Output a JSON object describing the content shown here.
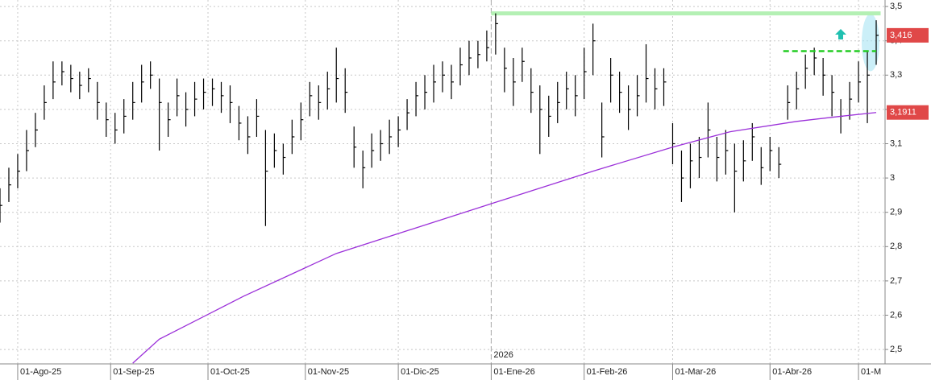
{
  "chart_data": {
    "type": "ohlc",
    "xlim": [
      0,
      200
    ],
    "ylim": [
      2.458,
      3.519
    ],
    "grid": true,
    "xticks": [
      {
        "value": 4,
        "label": "01-Ago-25"
      },
      {
        "value": 25,
        "label": "01-Sep-25"
      },
      {
        "value": 47,
        "label": "01-Oct-25"
      },
      {
        "value": 69,
        "label": "01-Nov-25"
      },
      {
        "value": 90,
        "label": "01-Dic-25"
      },
      {
        "value": 111,
        "label": "01-Ene-26"
      },
      {
        "value": 132,
        "label": "01-Feb-26"
      },
      {
        "value": 152,
        "label": "01-Mar-26"
      },
      {
        "value": 174,
        "label": "01-Abr-26"
      },
      {
        "value": 194,
        "label": "01-M"
      }
    ],
    "yticks": [
      {
        "value": 2.5,
        "label": "2,5"
      },
      {
        "value": 2.6,
        "label": "2,6"
      },
      {
        "value": 2.7,
        "label": "2,7"
      },
      {
        "value": 2.8,
        "label": "2,8"
      },
      {
        "value": 2.9,
        "label": "2,9"
      },
      {
        "value": 3,
        "label": "3"
      },
      {
        "value": 3.1,
        "label": "3,1"
      },
      {
        "value": 3.2,
        "label": "3,2"
      },
      {
        "value": 3.3,
        "label": "3,3"
      },
      {
        "value": 3.4,
        "label": "3,4"
      },
      {
        "value": 3.5,
        "label": "3,5"
      }
    ],
    "year_marker": {
      "value": 111,
      "label": "2026"
    },
    "color": "#000000",
    "x": [
      0,
      2,
      4,
      6,
      8,
      10,
      12,
      14,
      16,
      18,
      20,
      22,
      24,
      26,
      28,
      30,
      32,
      34,
      36,
      38,
      40,
      42,
      44,
      46,
      48,
      50,
      52,
      54,
      56,
      58,
      60,
      62,
      64,
      66,
      68,
      70,
      72,
      74,
      76,
      78,
      80,
      82,
      84,
      86,
      88,
      90,
      92,
      94,
      96,
      98,
      100,
      102,
      104,
      106,
      108,
      110,
      112,
      114,
      116,
      118,
      120,
      122,
      124,
      126,
      128,
      130,
      132,
      134,
      136,
      138,
      140,
      142,
      144,
      146,
      148,
      150,
      152,
      154,
      156,
      158,
      160,
      162,
      164,
      166,
      168,
      170,
      172,
      174,
      176,
      178,
      180,
      182,
      184,
      186,
      188,
      190,
      192,
      194,
      196,
      198
    ],
    "high": [
      2.97,
      3.03,
      3.07,
      3.14,
      3.19,
      3.27,
      3.34,
      3.34,
      3.33,
      3.31,
      3.32,
      3.28,
      3.22,
      3.19,
      3.23,
      3.28,
      3.33,
      3.34,
      3.29,
      3.22,
      3.29,
      3.25,
      3.28,
      3.29,
      3.29,
      3.28,
      3.27,
      3.21,
      3.18,
      3.23,
      3.14,
      3.13,
      3.1,
      3.17,
      3.22,
      3.28,
      3.27,
      3.31,
      3.38,
      3.32,
      3.15,
      3.08,
      3.13,
      3.14,
      3.17,
      3.18,
      3.23,
      3.28,
      3.3,
      3.33,
      3.34,
      3.33,
      3.38,
      3.4,
      3.4,
      3.43,
      3.48,
      3.38,
      3.35,
      3.38,
      3.32,
      3.27,
      3.24,
      3.28,
      3.31,
      3.3,
      3.38,
      3.45,
      3.22,
      3.35,
      3.31,
      3.27,
      3.3,
      3.39,
      3.32,
      3.32,
      3.16,
      3.08,
      3.1,
      3.12,
      3.22,
      3.12,
      3.14,
      3.1,
      3.11,
      3.16,
      3.09,
      3.12,
      3.09,
      3.27,
      3.31,
      3.36,
      3.38,
      3.35,
      3.3,
      3.23,
      3.28,
      3.34,
      3.37,
      3.46
    ],
    "low": [
      2.87,
      2.93,
      2.97,
      3.02,
      3.09,
      3.17,
      3.23,
      3.27,
      3.25,
      3.23,
      3.25,
      3.17,
      3.12,
      3.1,
      3.13,
      3.17,
      3.22,
      3.26,
      3.08,
      3.12,
      3.18,
      3.15,
      3.18,
      3.2,
      3.21,
      3.19,
      3.16,
      3.11,
      3.07,
      3.12,
      2.86,
      3.03,
      3.01,
      3.07,
      3.11,
      3.18,
      3.17,
      3.2,
      3.22,
      3.19,
      3.03,
      2.97,
      3.03,
      3.05,
      3.07,
      3.09,
      3.14,
      3.18,
      3.2,
      3.22,
      3.25,
      3.23,
      3.27,
      3.3,
      3.32,
      3.34,
      3.36,
      3.25,
      3.21,
      3.28,
      3.19,
      3.07,
      3.12,
      3.16,
      3.2,
      3.18,
      3.23,
      3.3,
      3.06,
      3.22,
      3.19,
      3.14,
      3.18,
      3.22,
      3.2,
      3.21,
      3.04,
      2.93,
      2.97,
      3.0,
      3.06,
      2.99,
      3.01,
      2.9,
      2.99,
      3.05,
      2.98,
      3.02,
      3.0,
      3.17,
      3.2,
      3.26,
      3.3,
      3.24,
      3.18,
      3.13,
      3.17,
      3.22,
      3.16,
      3.33
    ],
    "close": [
      2.92,
      2.98,
      3.02,
      3.08,
      3.14,
      3.22,
      3.28,
      3.31,
      3.29,
      3.27,
      3.29,
      3.22,
      3.17,
      3.14,
      3.18,
      3.22,
      3.28,
      3.3,
      3.22,
      3.17,
      3.24,
      3.2,
      3.23,
      3.25,
      3.26,
      3.24,
      3.22,
      3.16,
      3.12,
      3.18,
      3.02,
      3.08,
      3.06,
      3.12,
      3.17,
      3.24,
      3.22,
      3.26,
      3.29,
      3.25,
      3.09,
      3.03,
      3.08,
      3.1,
      3.12,
      3.14,
      3.19,
      3.24,
      3.25,
      3.28,
      3.3,
      3.28,
      3.33,
      3.35,
      3.36,
      3.38,
      3.45,
      3.32,
      3.28,
      3.34,
      3.25,
      3.2,
      3.18,
      3.22,
      3.26,
      3.24,
      3.31,
      3.4,
      3.12,
      3.3,
      3.25,
      3.2,
      3.24,
      3.29,
      3.26,
      3.28,
      3.1,
      3.0,
      3.05,
      3.06,
      3.14,
      3.06,
      3.08,
      3.02,
      3.05,
      3.12,
      3.03,
      3.08,
      3.04,
      3.22,
      3.26,
      3.32,
      3.35,
      3.3,
      3.25,
      3.18,
      3.23,
      3.28,
      3.3,
      3.416
    ],
    "moving_average": {
      "color": "#9b30d9",
      "x": [
        30,
        36,
        55,
        76,
        111,
        134,
        152,
        165,
        180,
        190,
        198
      ],
      "values": [
        2.46,
        2.53,
        2.655,
        2.78,
        2.925,
        3.02,
        3.09,
        3.135,
        3.165,
        3.18,
        3.191
      ]
    },
    "resistance": {
      "value": 3.48,
      "x_start": 111,
      "x_end": 199,
      "color": "#b4f0b4"
    },
    "breakout": {
      "value": 3.37,
      "x_start": 177,
      "x_end": 198,
      "color": "#22cc22"
    },
    "price_labels": [
      {
        "value": 3.416,
        "label": "3,416",
        "color": "#e04848"
      },
      {
        "value": 3.1911,
        "label": "3,1911",
        "color": "#e04848"
      }
    ]
  }
}
